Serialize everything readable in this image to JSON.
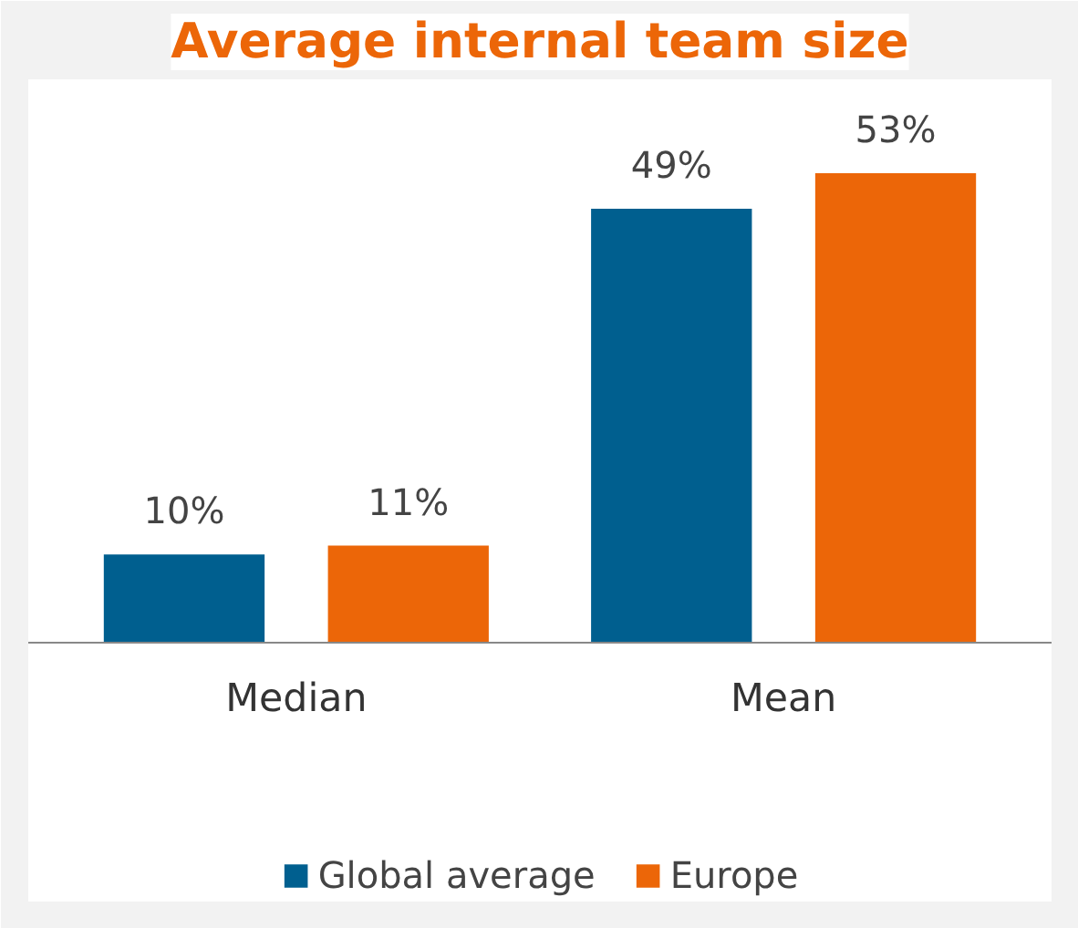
{
  "chart_data": {
    "type": "bar",
    "title": "Average internal team size",
    "categories": [
      "Median",
      "Mean"
    ],
    "series": [
      {
        "name": "Global average",
        "color": "#005f8f",
        "values": [
          10,
          49
        ],
        "value_labels": [
          "10%",
          "49%"
        ]
      },
      {
        "name": "Europe",
        "color": "#ec6608",
        "values": [
          11,
          53
        ],
        "value_labels": [
          "11%",
          "53%"
        ]
      }
    ],
    "legend": "bottom"
  }
}
